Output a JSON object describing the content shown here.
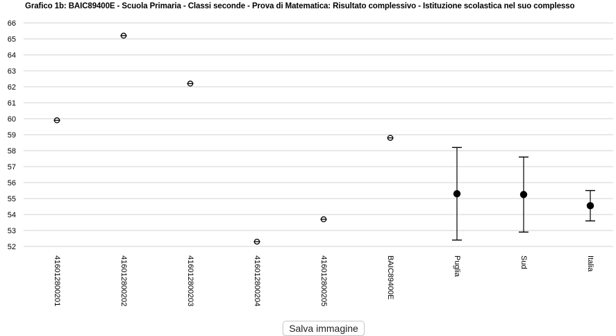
{
  "chart_data": {
    "type": "scatter",
    "title": "Grafico 1b: BAIC89400E - Scuola Primaria - Classi seconde - Prova di Matematica: Risultato complessivo - Istituzione scolastica nel suo complesso",
    "xlabel": "",
    "ylabel": "",
    "ylim": [
      52,
      66
    ],
    "yticks": [
      52,
      53,
      54,
      55,
      56,
      57,
      58,
      59,
      60,
      61,
      62,
      63,
      64,
      65,
      66
    ],
    "grid": true,
    "categories": [
      "416012800201",
      "416012800202",
      "416012800203",
      "416012800204",
      "416012800205",
      "BAIC89400E",
      "Puglia",
      "Sud",
      "Italia"
    ],
    "points": [
      {
        "category": "416012800201",
        "value": 59.9,
        "marker": "open-circle"
      },
      {
        "category": "416012800202",
        "value": 65.2,
        "marker": "open-circle"
      },
      {
        "category": "416012800203",
        "value": 62.2,
        "marker": "open-circle"
      },
      {
        "category": "416012800204",
        "value": 52.3,
        "marker": "open-circle"
      },
      {
        "category": "416012800205",
        "value": 53.7,
        "marker": "open-circle"
      },
      {
        "category": "BAIC89400E",
        "value": 58.8,
        "marker": "open-circle"
      },
      {
        "category": "Puglia",
        "value": 55.3,
        "lower": 52.4,
        "upper": 58.2,
        "marker": "filled-circle"
      },
      {
        "category": "Sud",
        "value": 55.25,
        "lower": 52.9,
        "upper": 57.6,
        "marker": "filled-circle"
      },
      {
        "category": "Italia",
        "value": 54.55,
        "lower": 53.6,
        "upper": 55.5,
        "marker": "filled-circle"
      }
    ]
  },
  "colors": {
    "grid": "#d0d0d0",
    "marker": "#000000"
  },
  "ui": {
    "save_button_label": "Salva immagine"
  }
}
